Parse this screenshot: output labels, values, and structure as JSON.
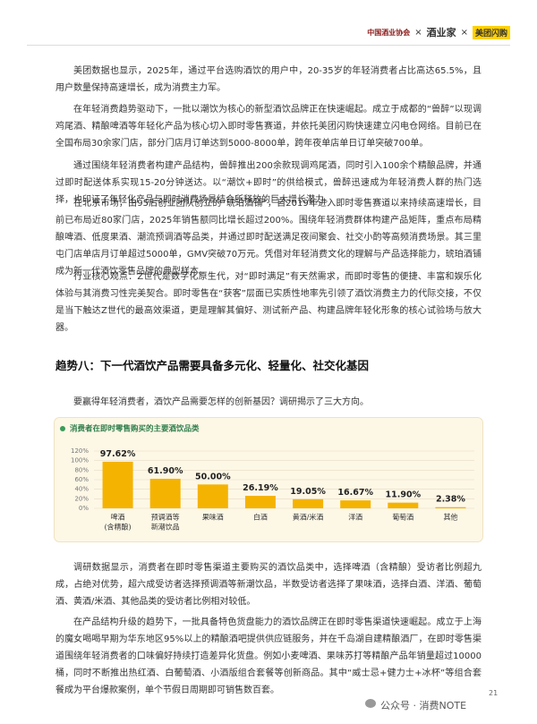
{
  "header": {
    "logos": [
      "中国酒业协会",
      "×",
      "酒业家",
      "×",
      "美团闪购"
    ]
  },
  "paragraphs": [
    "美团数据也显示，2025年，通过平台选购酒饮的用户中，20-35岁的年轻消费者占比高达65.5%，且用户数量保持高速增长，成为消费主力军。",
    "在年轻消费趋势驱动下，一批以潮饮为核心的新型酒饮品牌正在快速崛起。成立于成都的“兽醉”以现调鸡尾酒、精酿啤酒等年轻化产品为核心切入即时零售赛道，并依托美团闪购快速建立闪电仓网络。目前已在全国布局30余家门店，部分门店月订单达到5000-8000单，跨年夜单店单日订单突破700单。",
    "通过围绕年轻消费者构建产品结构，兽醉推出200余款现调鸡尾酒，同时引入100余个精酿品牌，并通过即时配送体系实现15-20分钟送达。以“潮饮+即时”的供给模式，兽醉迅速成为年轻消费人群的热门选择，也印证了年轻化产品与即时消费场景结合所释放的巨大增长潜力。",
    "在北京市场，由95后创业团队创立的“琥珀酒铺”，自2019年进入即时零售赛道以来持续高速增长，目前已布局近80家门店，2025年销售额同比增长超过200%。围绕年轻消费群体构建产品矩阵，重点布局精酿啤酒、低度果酒、潮流预调酒等品类，并通过即时配送满足夜间聚会、社交小酌等高频消费场景。其三里屯门店单店月订单超过5000单，GMV突破70万元。凭借对年轻消费文化的理解与产品选择能力，琥珀酒铺成为新一代酒饮零售品牌的典型样本。",
    "行业核心观点：Z世代是数字化原生代，对“即时满足”有天然需求，而即时零售的便捷、丰富和娱乐化体验与其消费习性完美契合。即时零售在“获客”层面已实质性地率先引领了酒饮消费主力的代际交接，不仅是当下触达Z世代的最高效渠道，更是理解其偏好、测试新产品、构建品牌年轻化形象的核心试验场与放大器。"
  ],
  "section_title": "趋势八：下一代酒饮产品需要具备多元化、轻量化、社交化基因",
  "intro": "要赢得年轻消费者，酒饮产品需要怎样的创新基因？调研揭示了三大方向。",
  "chart_data": {
    "type": "bar",
    "title": "消费者在即时零售购买的主要酒饮品类",
    "color": "#f5b301",
    "categories": [
      [
        "啤酒",
        "(含精酿)"
      ],
      [
        "预调酒等",
        "新潮饮品"
      ],
      [
        "果味酒"
      ],
      [
        "白酒"
      ],
      [
        "黄酒/米酒"
      ],
      [
        "洋酒"
      ],
      [
        "葡萄酒"
      ],
      [
        "其他"
      ]
    ],
    "values": [
      97.62,
      61.9,
      50.0,
      26.19,
      19.05,
      16.67,
      11.9,
      2.38
    ],
    "value_labels": [
      "97.62%",
      "61.90%",
      "50.00%",
      "26.19%",
      "19.05%",
      "16.67%",
      "11.90%",
      "2.38%"
    ],
    "ylim": [
      0,
      120
    ],
    "yticks": [
      {
        "value": 0,
        "label": "0%"
      },
      {
        "value": 20,
        "label": "20%"
      },
      {
        "value": 40,
        "label": "40%"
      },
      {
        "value": 60,
        "label": "60%"
      },
      {
        "value": 80,
        "label": "80%"
      },
      {
        "value": 100,
        "label": "100%"
      },
      {
        "value": 120,
        "label": "120%"
      }
    ]
  },
  "paragraphs_after": [
    "调研数据显示，消费者在即时零售渠道主要购买的酒饮品类中，选择啤酒（含精酿）受访者比例超九成，占绝对优势，超六成受访者选择预调酒等新潮饮品，半数受访者选择了果味酒，选择白酒、洋酒、葡萄酒、黄酒/米酒、其他品类的受访者比例相对较低。",
    "在产品结构升级的趋势下，一批具备特色货盘能力的酒饮品牌正在即时零售渠道快速崛起。成立于上海的魔女喝喝早期为华东地区95%以上的精酿酒吧提供供应链服务，并在千岛湖自建精酿酒厂，在即时零售渠道围绕年轻消费者的口味偏好持续打造差异化货盘。例如小麦啤酒、果味苏打等精酿产品年销量超过10000桶，同时不断推出热红酒、白葡萄酒、小酒版组合套餐等创新商品。其中“威士忌+健力士+冰杯”等组合套餐成为平台爆款案例，单个节假日周期即可销售数百套。"
  ],
  "footer": {
    "account": "公众号 · 消费NOTE",
    "page": "21"
  }
}
